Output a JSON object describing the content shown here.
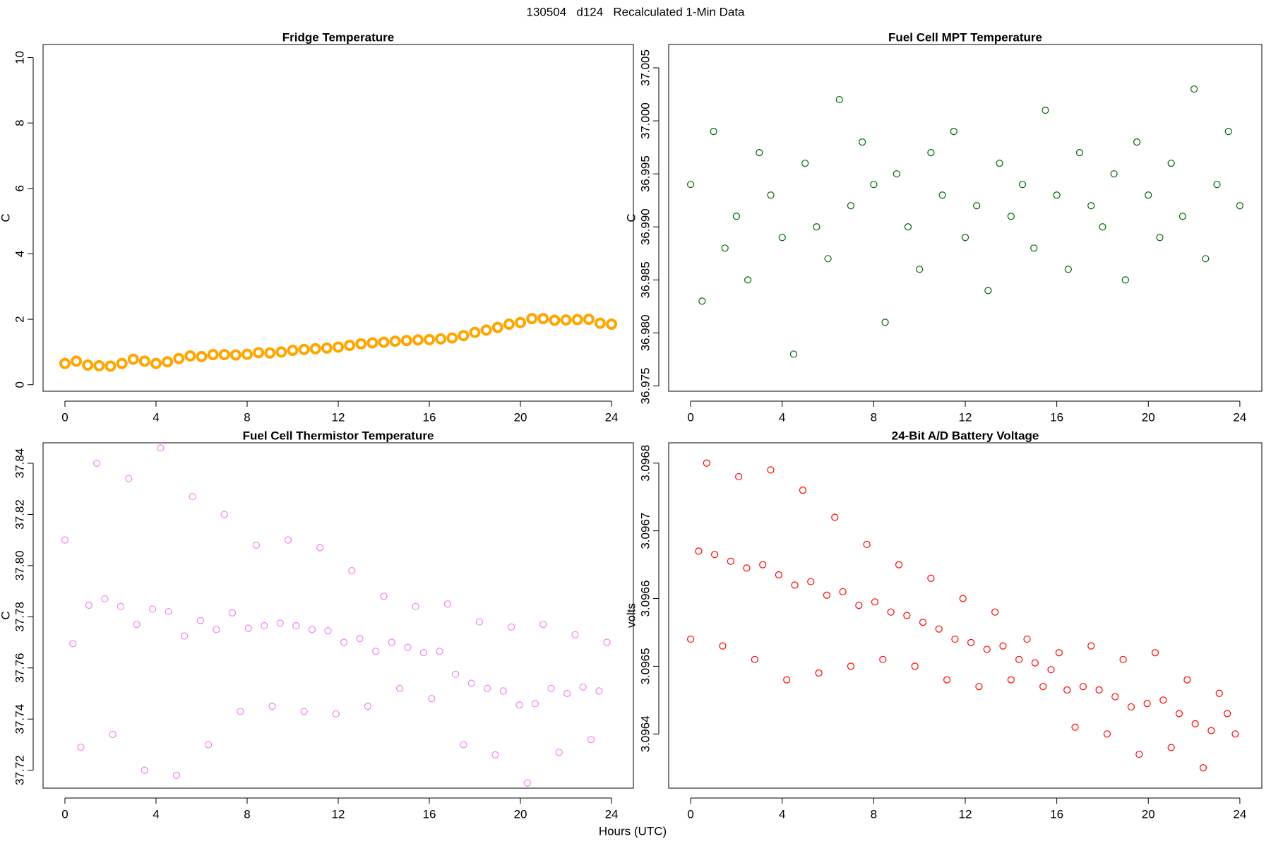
{
  "title": "130504   d124   Recalculated 1-Min Data",
  "xlabel": "Hours (UTC)",
  "chart_data": [
    {
      "type": "scatter",
      "title": "Fridge Temperature",
      "ylabel": "C",
      "color": "#ffa500",
      "xlim": [
        -0.96,
        24.96
      ],
      "xticks": [
        0,
        4,
        8,
        12,
        16,
        20,
        24
      ],
      "ylim": [
        -0.2,
        10.4
      ],
      "yticks": [
        0,
        2,
        4,
        6,
        8,
        10
      ],
      "x": [
        0,
        0.5,
        1,
        1.5,
        2,
        2.5,
        3,
        3.5,
        4,
        4.5,
        5,
        5.5,
        6,
        6.5,
        7,
        7.5,
        8,
        8.5,
        9,
        9.5,
        10,
        10.5,
        11,
        11.5,
        12,
        12.5,
        13,
        13.5,
        14,
        14.5,
        15,
        15.5,
        16,
        16.5,
        17,
        17.5,
        18,
        18.5,
        19,
        19.5,
        20,
        20.5,
        21,
        21.5,
        22,
        22.5,
        23,
        23.5,
        24
      ],
      "values": [
        0.65,
        0.72,
        0.6,
        0.58,
        0.57,
        0.65,
        0.78,
        0.72,
        0.65,
        0.7,
        0.8,
        0.88,
        0.86,
        0.92,
        0.92,
        0.91,
        0.93,
        0.98,
        0.97,
        1.0,
        1.05,
        1.08,
        1.1,
        1.12,
        1.15,
        1.2,
        1.25,
        1.28,
        1.3,
        1.33,
        1.35,
        1.37,
        1.38,
        1.4,
        1.43,
        1.5,
        1.6,
        1.67,
        1.75,
        1.85,
        1.9,
        2.02,
        2.02,
        1.97,
        1.98,
        1.99,
        2.0,
        1.88,
        1.85
      ]
    },
    {
      "type": "scatter",
      "title": "Fuel Cell MPT Temperature",
      "ylabel": "C",
      "color": "#006400",
      "xlim": [
        -0.96,
        24.96
      ],
      "xticks": [
        0,
        4,
        8,
        12,
        16,
        20,
        24
      ],
      "ylim": [
        36.9745,
        37.0072
      ],
      "yticks": [
        36.975,
        {
          "value": 36.98,
          "label": "36.980"
        },
        36.985,
        {
          "value": 36.99,
          "label": "36.990"
        },
        36.995,
        {
          "value": 37,
          "label": "37.000"
        },
        37.005
      ],
      "x": [
        0,
        0.5,
        1,
        1.5,
        2,
        2.5,
        3,
        3.5,
        4,
        4.5,
        5,
        5.5,
        6,
        6.5,
        7,
        7.5,
        8,
        8.5,
        9,
        9.5,
        10,
        10.5,
        11,
        11.5,
        12,
        12.5,
        13,
        13.5,
        14,
        14.5,
        15,
        15.5,
        16,
        16.5,
        17,
        17.5,
        18,
        18.5,
        19,
        19.5,
        20,
        20.5,
        21,
        21.5,
        22,
        22.5,
        23,
        23.5,
        24
      ],
      "values": [
        36.994,
        36.983,
        36.999,
        36.988,
        36.991,
        36.985,
        36.997,
        36.993,
        36.989,
        36.978,
        36.996,
        36.99,
        36.987,
        37.002,
        36.992,
        36.998,
        36.994,
        36.981,
        36.995,
        36.99,
        36.986,
        36.997,
        36.993,
        36.999,
        36.989,
        36.992,
        36.984,
        36.996,
        36.991,
        36.994,
        36.988,
        37.001,
        36.993,
        36.986,
        36.997,
        36.992,
        36.99,
        36.995,
        36.985,
        36.998,
        36.993,
        36.989,
        36.996,
        36.991,
        37.003,
        36.987,
        36.994,
        36.999,
        36.992
      ]
    },
    {
      "type": "scatter",
      "title": "Fuel Cell Thermistor Temperature",
      "ylabel": "C",
      "color": "#ee82ee",
      "xlim": [
        -0.96,
        24.96
      ],
      "xticks": [
        0,
        4,
        8,
        12,
        16,
        20,
        24
      ],
      "ylim": [
        37.713,
        37.848
      ],
      "yticks": [
        37.72,
        37.74,
        37.76,
        37.78,
        {
          "value": 37.8,
          "label": "37.80"
        },
        37.82,
        37.84
      ],
      "x": [
        0,
        0.35,
        0.7,
        1.05,
        1.4,
        1.75,
        2.1,
        2.45,
        2.8,
        3.15,
        3.5,
        3.85,
        4.2,
        4.55,
        4.9,
        5.25,
        5.6,
        5.95,
        6.3,
        6.65,
        7,
        7.35,
        7.7,
        8.05,
        8.4,
        8.75,
        9.1,
        9.45,
        9.8,
        10.15,
        10.5,
        10.85,
        11.2,
        11.55,
        11.9,
        12.25,
        12.6,
        12.95,
        13.3,
        13.65,
        14,
        14.35,
        14.7,
        15.05,
        15.4,
        15.75,
        16.1,
        16.45,
        16.8,
        17.15,
        17.5,
        17.85,
        18.2,
        18.55,
        18.9,
        19.25,
        19.6,
        19.95,
        20.3,
        20.65,
        21,
        21.35,
        21.7,
        22.05,
        22.4,
        22.75,
        23.1,
        23.45,
        23.8
      ],
      "values": [
        37.81,
        37.7695,
        37.729,
        37.7845,
        37.84,
        37.787,
        37.734,
        37.784,
        37.834,
        37.777,
        37.72,
        37.783,
        37.846,
        37.782,
        37.718,
        37.7725,
        37.827,
        37.7785,
        37.73,
        37.775,
        37.82,
        37.7815,
        37.743,
        37.7755,
        37.808,
        37.7765,
        37.745,
        37.7775,
        37.81,
        37.7765,
        37.743,
        37.775,
        37.807,
        37.7745,
        37.742,
        37.77,
        37.798,
        37.7715,
        37.745,
        37.7665,
        37.788,
        37.77,
        37.752,
        37.768,
        37.784,
        37.766,
        37.748,
        37.7665,
        37.785,
        37.7575,
        37.73,
        37.754,
        37.778,
        37.752,
        37.726,
        37.751,
        37.776,
        37.7455,
        37.715,
        37.746,
        37.777,
        37.752,
        37.727,
        37.75,
        37.773,
        37.7525,
        37.732,
        37.751,
        37.77
      ]
    },
    {
      "type": "scatter",
      "title": "24-Bit A/D Battery Voltage",
      "ylabel": "volts",
      "color": "#ff0000",
      "xlim": [
        -0.96,
        24.96
      ],
      "xticks": [
        0,
        4,
        8,
        12,
        16,
        20,
        24
      ],
      "ylim": [
        3.09632,
        3.09683
      ],
      "yticks": [
        3.0964,
        3.0965,
        3.0966,
        3.0967,
        3.0968
      ],
      "x": [
        0,
        0.35,
        0.7,
        1.05,
        1.4,
        1.75,
        2.1,
        2.45,
        2.8,
        3.15,
        3.5,
        3.85,
        4.2,
        4.55,
        4.9,
        5.25,
        5.6,
        5.95,
        6.3,
        6.65,
        7,
        7.35,
        7.7,
        8.05,
        8.4,
        8.75,
        9.1,
        9.45,
        9.8,
        10.15,
        10.5,
        10.85,
        11.2,
        11.55,
        11.9,
        12.25,
        12.6,
        12.95,
        13.3,
        13.65,
        14,
        14.35,
        14.7,
        15.05,
        15.4,
        15.75,
        16.1,
        16.45,
        16.8,
        17.15,
        17.5,
        17.85,
        18.2,
        18.55,
        18.9,
        19.25,
        19.6,
        19.95,
        20.3,
        20.65,
        21,
        21.35,
        21.7,
        22.05,
        22.4,
        22.75,
        23.1,
        23.45,
        23.8
      ],
      "values": [
        3.09654,
        3.09667,
        3.0968,
        3.096665,
        3.09653,
        3.096655,
        3.09678,
        3.096645,
        3.09651,
        3.09665,
        3.09679,
        3.096635,
        3.09648,
        3.09662,
        3.09676,
        3.096625,
        3.09649,
        3.096605,
        3.09672,
        3.09661,
        3.0965,
        3.09659,
        3.09668,
        3.096595,
        3.09651,
        3.09658,
        3.09665,
        3.096575,
        3.0965,
        3.096565,
        3.09663,
        3.096555,
        3.09648,
        3.09654,
        3.0966,
        3.096535,
        3.09647,
        3.096525,
        3.09658,
        3.09653,
        3.09648,
        3.09651,
        3.09654,
        3.096505,
        3.09647,
        3.096495,
        3.09652,
        3.096465,
        3.09641,
        3.09647,
        3.09653,
        3.096465,
        3.0964,
        3.096455,
        3.09651,
        3.09644,
        3.09637,
        3.096445,
        3.09652,
        3.09645,
        3.09638,
        3.09643,
        3.09648,
        3.096415,
        3.09635,
        3.096405,
        3.09646,
        3.09643,
        3.0964
      ]
    }
  ]
}
